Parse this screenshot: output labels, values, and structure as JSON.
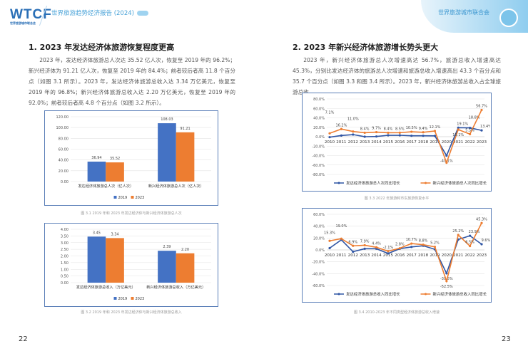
{
  "header": {
    "logo": "WTCF",
    "logo_sub": "世界旅游城市联合会",
    "report_title": "世界旅游趋势经济报告 (2024)",
    "org_name": "世界旅游城市联合会"
  },
  "left": {
    "heading": "1. 2023 年发达经济体旅游恢复程度更高",
    "paragraph": "2023 年，发达经济体旅游总人次达 35.52 亿人次，恢复至 2019 年的 96.2%；新兴经济体为 91.21 亿人次，恢复至 2019 年的 84.4%；前者较后者高 11.8 个百分点（如图 3.1 所示）。2023 年，发达经济体旅游总收入达 3.34 万亿美元，恢复至 2019 年的 96.8%；新兴经济体旅游总收入达 2.20 万亿美元，恢复至 2019 年的 92.0%；前者较后者高 4.8 个百分点（如图 3.2 所示）。",
    "page_number": "22"
  },
  "right": {
    "heading": "2. 2023 年新兴经济体旅游增长势头更大",
    "paragraph": "2023 年，新兴经济体旅游总人次增速高达 56.7%，旅游总收入增速高达 45.3%，分别比发达经济体的旅游总人次增速和旅游总收入增速高出 43.3 个百分点和 35.7 个百分点（如图 3.3 和图 3.4 所示）。2023 年，新兴经济体旅游总收入占全球旅游总收",
    "page_number": "23"
  },
  "chart_data": [
    {
      "id": "c1",
      "type": "bar",
      "caption": "图 3.1 2019 年和 2023 年发达经济体与新兴经济体旅游总人次",
      "categories": [
        "发达经济体旅游总人次（亿人次）",
        "新兴经济体旅游总人次（亿人次）"
      ],
      "series": [
        {
          "name": "2019",
          "values": [
            36.94,
            108.03
          ],
          "labels": [
            "36.94",
            "108.03"
          ],
          "color": "#4472c4"
        },
        {
          "name": "2023",
          "values": [
            35.52,
            91.21
          ],
          "labels": [
            "35.52",
            "91.21"
          ],
          "color": "#ed7d31"
        }
      ],
      "ylim": [
        0,
        120
      ],
      "ystep": 20,
      "yticks": [
        "0.00",
        "20.00",
        "40.00",
        "60.00",
        "80.00",
        "100.00",
        "120.00"
      ],
      "grid": true,
      "legend": "bottom"
    },
    {
      "id": "c2",
      "type": "bar",
      "caption": "图 3.2 2019 年和 2023 年发达经济体与新兴经济体旅游总收入",
      "categories": [
        "发达经济体旅游总收入（万亿美元）",
        "新兴经济体旅游总收入（万亿美元）"
      ],
      "series": [
        {
          "name": "2019",
          "values": [
            3.45,
            2.39
          ],
          "labels": [
            "3.45",
            "2.39"
          ],
          "color": "#4472c4"
        },
        {
          "name": "2023",
          "values": [
            3.34,
            2.2
          ],
          "labels": [
            "3.34",
            "2.20"
          ],
          "color": "#ed7d31"
        }
      ],
      "ylim": [
        0,
        4
      ],
      "ystep": 0.5,
      "yticks": [
        "0.00",
        "0.50",
        "1.00",
        "1.50",
        "2.00",
        "2.50",
        "3.00",
        "3.50",
        "4.00"
      ],
      "grid": true,
      "legend": "bottom"
    },
    {
      "id": "c3",
      "type": "line",
      "caption": "图 3.3 2022 年旅游和市东旅游恢复水平",
      "x": [
        "2010",
        "2011",
        "2012",
        "2013",
        "2014",
        "2015",
        "2016",
        "2017",
        "2018",
        "2019",
        "2020",
        "2021",
        "2022",
        "2023"
      ],
      "series": [
        {
          "name": "发达经济体旅游总人次同比增长",
          "values": [
            -1,
            2.5,
            4.5,
            0,
            0.5,
            3,
            3,
            2,
            2,
            1.8,
            -40.1,
            19.1,
            18.8,
            13.4
          ],
          "labels": [
            null,
            null,
            null,
            null,
            null,
            null,
            null,
            null,
            null,
            null,
            "-40.1%",
            "19.1%",
            "18.8%",
            "13.4%"
          ],
          "color": "#2f55a4"
        },
        {
          "name": "新兴经济体旅游总人次同比增长",
          "values": [
            7.1,
            16.2,
            11.0,
            8.4,
            9.7,
            8.4,
            8.5,
            10.5,
            9.4,
            12.1,
            -55,
            15.1,
            5.5,
            56.7
          ],
          "labels": [
            "7.1%",
            "16.2%",
            "11.0%",
            "8.4%",
            "9.7%",
            "8.4%",
            "8.5%",
            "10.5%",
            "9.4%",
            "12.1%",
            null,
            "15.1%",
            "5.5%",
            "56.7%"
          ],
          "color": "#ed7d31"
        }
      ],
      "ylim": [
        -80,
        80
      ],
      "ystep": 20,
      "yticks": [
        "-80.0%",
        "-60.0%",
        "-40.0%",
        "-20.0%",
        "0.0%",
        "20.0%",
        "40.0%",
        "60.0%",
        "80.0%"
      ],
      "grid": true,
      "legend": "bottom"
    },
    {
      "id": "c4",
      "type": "line",
      "caption": "图 3.4 2010-2023 年不同类型经济体旅游总收入增速",
      "x": [
        "2010",
        "2011",
        "2012",
        "2013",
        "2014",
        "2015",
        "2016",
        "2017",
        "2018",
        "2019",
        "2020",
        "2021",
        "2022",
        "2023"
      ],
      "series": [
        {
          "name": "发达经济体旅游总收入同比增长",
          "values": [
            3,
            17,
            -3,
            2,
            2,
            -6,
            2,
            5,
            7,
            1,
            -39.5,
            17.5,
            23.9,
            9.6
          ],
          "labels": [
            null,
            null,
            null,
            null,
            null,
            null,
            null,
            null,
            null,
            null,
            "-39.5%",
            null,
            "23.9%",
            "9.6%"
          ],
          "color": "#2f55a4"
        },
        {
          "name": "新兴经济体旅游总收入同比增长",
          "values": [
            15.3,
            19.0,
            6.9,
            7.9,
            4.4,
            -2.1,
            2.8,
            10.7,
            8.8,
            5.2,
            -52.5,
            25.2,
            6.5,
            45.3
          ],
          "labels": [
            "15.3%",
            "19.0%",
            "6.9%",
            "7.9%",
            "4.4%",
            "-2.1%",
            "2.8%",
            "10.7%",
            "8.8%",
            "5.2%",
            "-52.5%",
            "25.2%",
            "6.5%",
            "45.3%"
          ],
          "color": "#ed7d31"
        }
      ],
      "ylim": [
        -60,
        60
      ],
      "ystep": 20,
      "yticks": [
        "-60.0%",
        "-40.0%",
        "-20.0%",
        "0.0%",
        "20.0%",
        "40.0%",
        "60.0%"
      ],
      "grid": true,
      "legend": "bottom"
    }
  ]
}
